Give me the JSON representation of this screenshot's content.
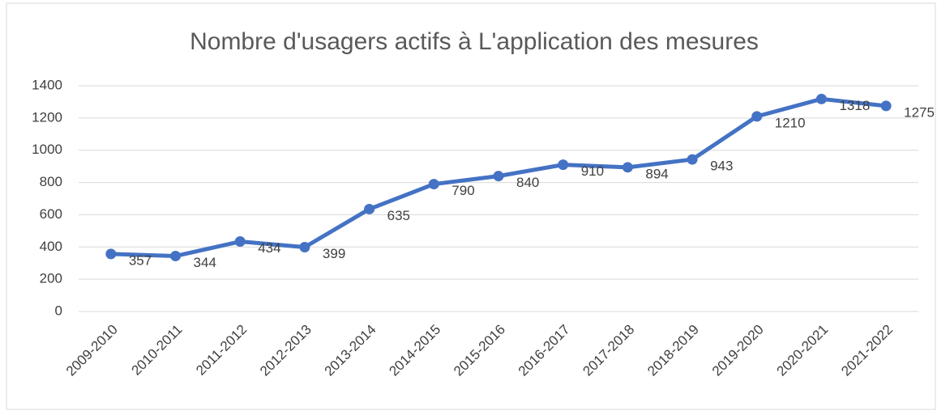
{
  "chart_data": {
    "type": "line",
    "title": "Nombre d'usagers actifs à L'application des mesures",
    "categories": [
      "2009-2010",
      "2010-2011",
      "2011-2012",
      "2012-2013",
      "2013-2014",
      "2014-2015",
      "2015-2016",
      "2016-2017",
      "2017-2018",
      "2018-2019",
      "2019-2020",
      "2020-2021",
      "2021-2022"
    ],
    "values": [
      357,
      344,
      434,
      399,
      635,
      790,
      840,
      910,
      894,
      943,
      1210,
      1318,
      1275
    ],
    "color": "#4472c4",
    "ylim": [
      0,
      1400
    ],
    "yticks": [
      0,
      200,
      400,
      600,
      800,
      1000,
      1200,
      1400
    ],
    "grid": true
  }
}
